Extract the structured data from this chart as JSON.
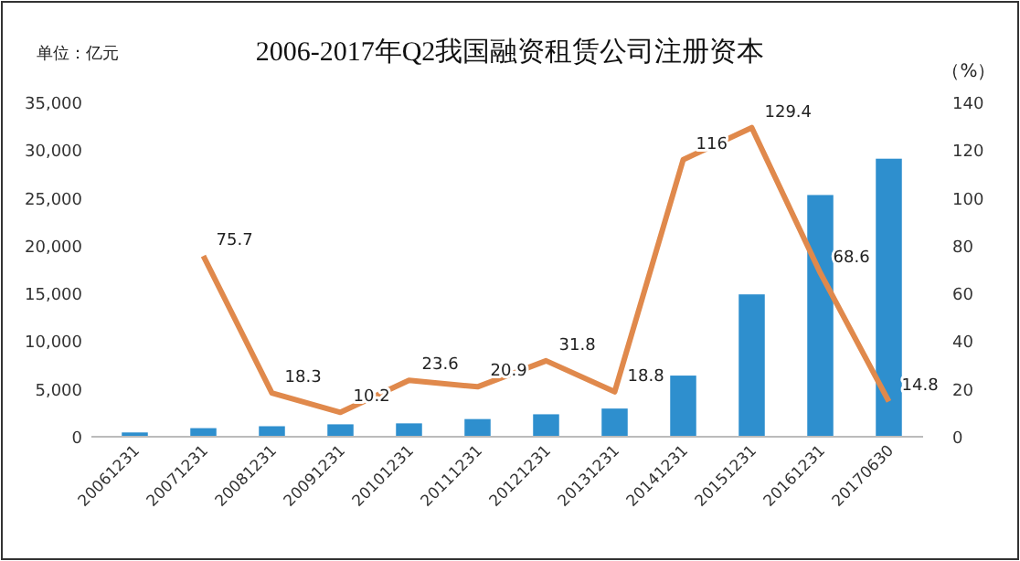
{
  "chart_data": {
    "type": "bar",
    "title": "2006-2017年Q2我国融资租赁公司注册资本",
    "ylabel": "单位：亿元",
    "y2label": "（%）",
    "categories": [
      "20061231",
      "20071231",
      "20081231",
      "20091231",
      "20101231",
      "20111231",
      "20121231",
      "20131231",
      "20141231",
      "20151231",
      "20161231",
      "20170630"
    ],
    "series": [
      {
        "color": "#2e8fce",
        "values": [
          450,
          900,
          1100,
          1300,
          1400,
          1850,
          2350,
          2950,
          6400,
          14900,
          25300,
          29100
        ]
      },
      {
        "type": "line",
        "axis": "y2",
        "color": "#e0894c",
        "values": [
          null,
          75.7,
          18.3,
          10.2,
          23.6,
          20.9,
          31.8,
          18.8,
          116,
          129.4,
          68.6,
          14.8
        ],
        "value_labels": [
          null,
          "75.7",
          "18.3",
          "10.2",
          "23.6",
          "20.9",
          "31.8",
          "18.8",
          "116",
          "129.4",
          "68.6",
          "14.8"
        ]
      }
    ],
    "ylim": [
      0,
      35000
    ],
    "yticks": [
      {
        "value": 0,
        "label": "0"
      },
      {
        "value": 5000,
        "label": "5,000"
      },
      {
        "value": 10000,
        "label": "10,000"
      },
      {
        "value": 15000,
        "label": "15,000"
      },
      {
        "value": 20000,
        "label": "20,000"
      },
      {
        "value": 25000,
        "label": "25,000"
      },
      {
        "value": 30000,
        "label": "30,000"
      },
      {
        "value": 35000,
        "label": "35,000"
      }
    ],
    "y2lim": [
      0,
      140
    ],
    "y2ticks": [
      0,
      20,
      40,
      60,
      80,
      100,
      120,
      140
    ],
    "grid": false,
    "marker": "none",
    "line_style": "solid"
  }
}
